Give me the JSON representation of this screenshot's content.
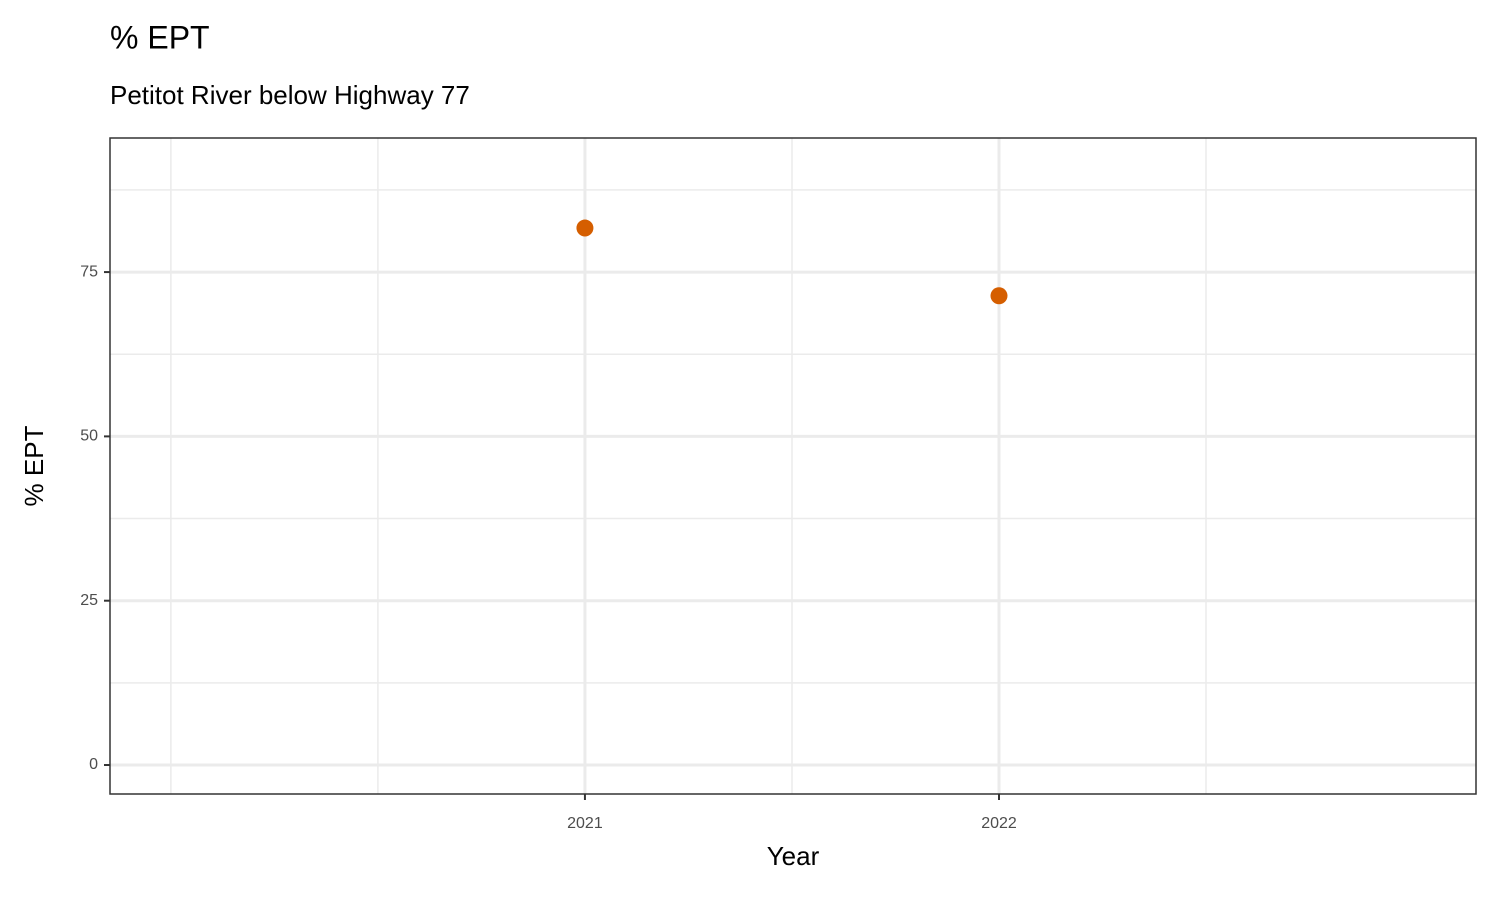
{
  "chart_data": {
    "type": "scatter",
    "title": "% EPT",
    "subtitle": "Petitot River below Highway 77",
    "x_label": "Year",
    "y_label": "% EPT",
    "x": [
      2021,
      2022
    ],
    "values": [
      81.7,
      71.4
    ],
    "color": "#d55e00",
    "xlim": [
      2019.853,
      2023.152
    ],
    "xticks": [
      2021,
      2022
    ],
    "ylim": [
      -4.41,
      95.4
    ],
    "yticks": [
      0,
      25,
      50,
      75
    ],
    "grid": true
  }
}
